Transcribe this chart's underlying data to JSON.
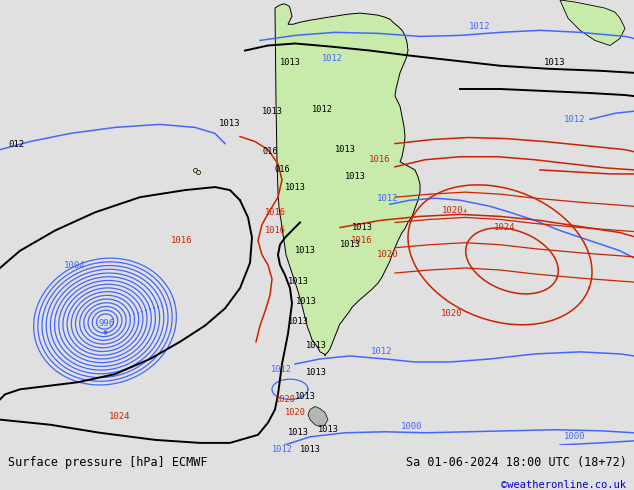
{
  "title_left": "Surface pressure [hPa] ECMWF",
  "title_right": "Sa 01-06-2024 18:00 UTC (18+72)",
  "credit": "©weatheronline.co.uk",
  "credit_color": "#0000cc",
  "ocean_color": "#d8dde8",
  "land_color": "#c8eaaa",
  "gray_land_color": "#b0b8b0",
  "footer_bg": "#e0e0e0",
  "footer_text_color": "#000000",
  "blue": "#4466ff",
  "red": "#cc2200",
  "black": "#000000",
  "lw_thin": 0.9,
  "lw_med": 1.1,
  "lw_thick": 1.4
}
